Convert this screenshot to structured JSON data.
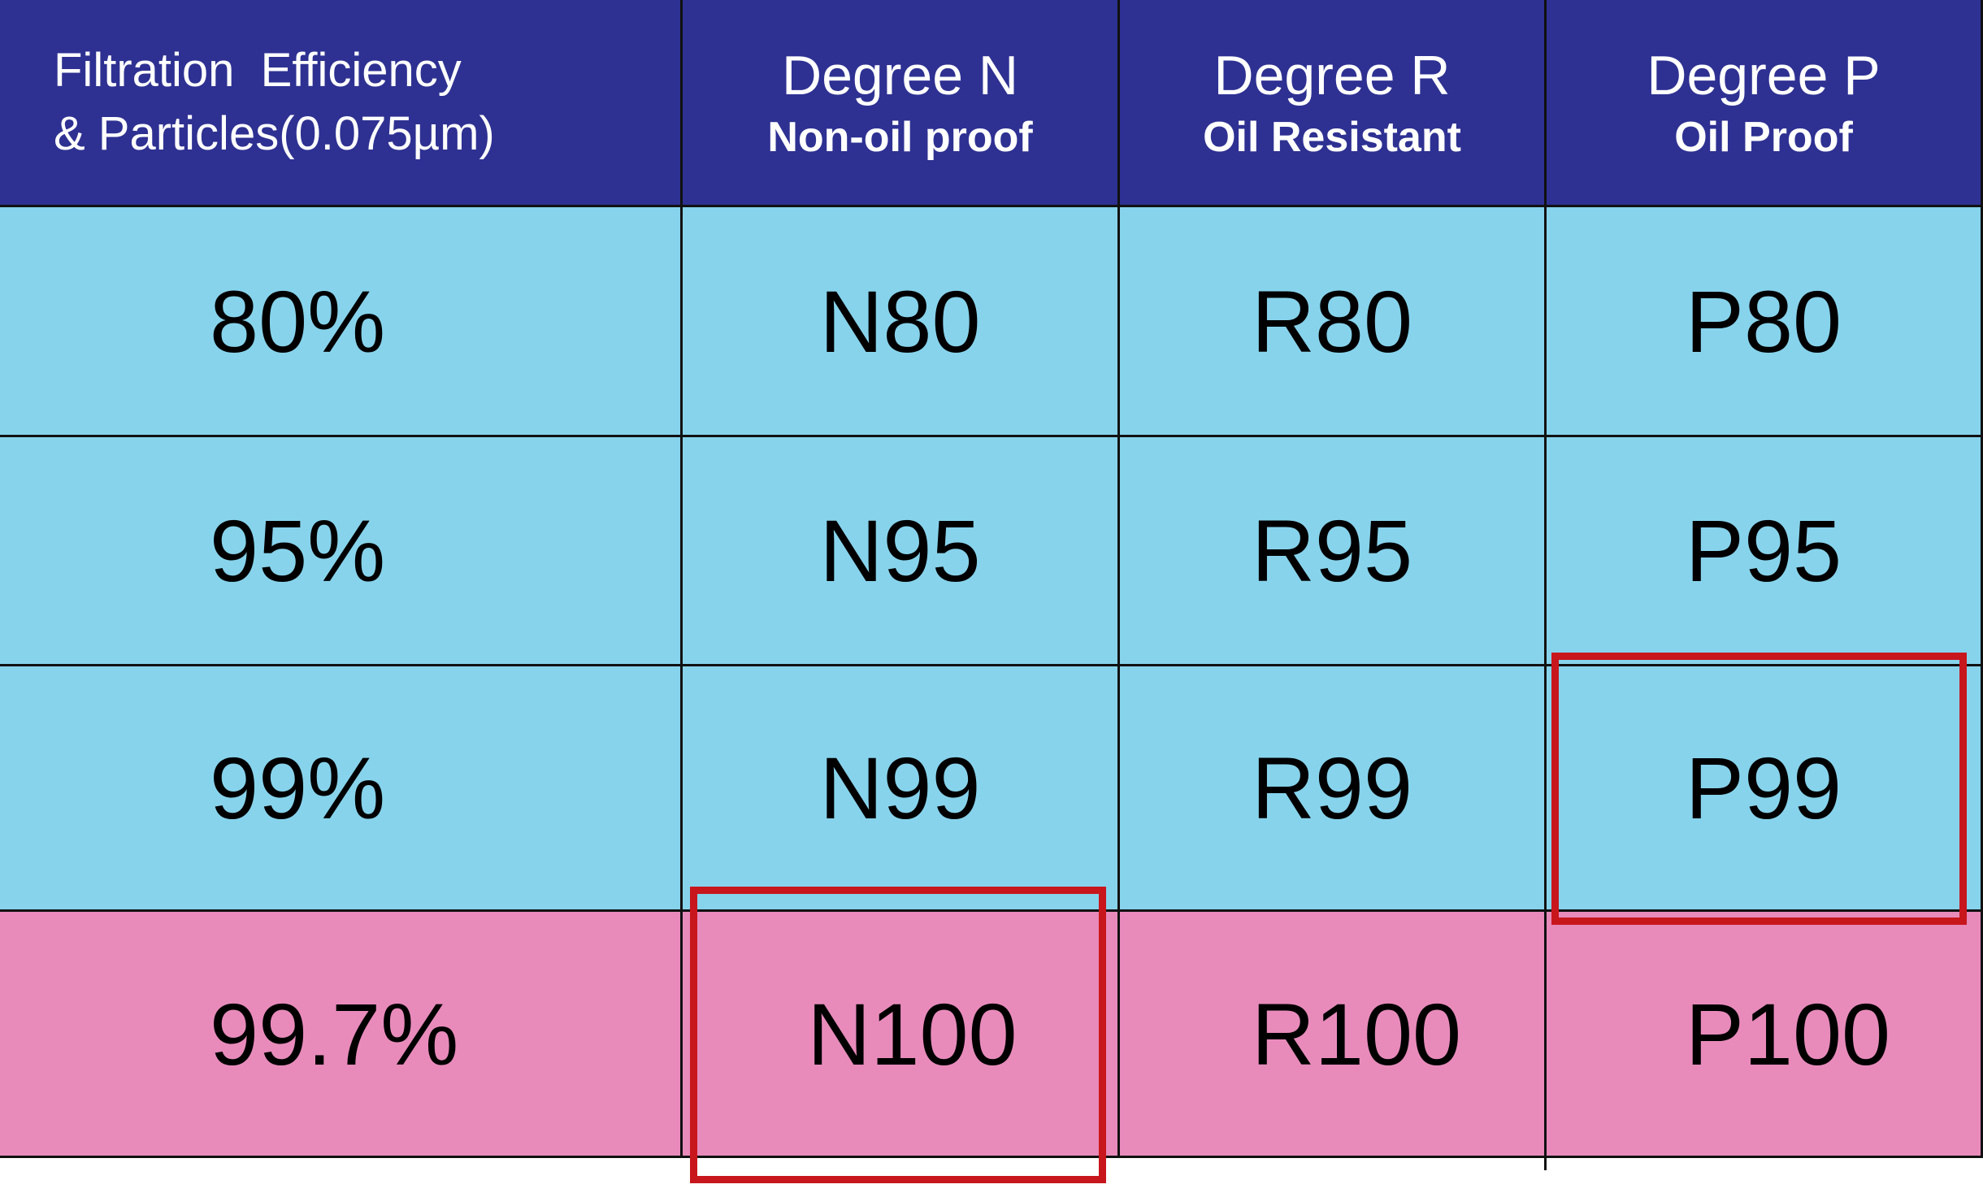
{
  "header": {
    "first_col": {
      "line1": "Filtration  Efficiency",
      "line2": "& Particles(0.075µm)"
    },
    "columns": [
      {
        "title": "Degree N",
        "subtitle": "Non-oil proof"
      },
      {
        "title": "Degree R",
        "subtitle": "Oil Resistant"
      },
      {
        "title": "Degree P",
        "subtitle": "Oil Proof"
      }
    ]
  },
  "rows": [
    {
      "efficiency": "80%",
      "n": "N80",
      "r": "R80",
      "p": "P80",
      "color": "#87d3ec"
    },
    {
      "efficiency": "95%",
      "n": "N95",
      "r": "R95",
      "p": "P95",
      "color": "#87d3ec"
    },
    {
      "efficiency": "99%",
      "n": "N99",
      "r": "R99",
      "p": "P99",
      "color": "#87d3ec"
    },
    {
      "efficiency": "99.7%",
      "n": "N100",
      "r": "R100",
      "p": "P100",
      "color": "#e88bbb"
    }
  ],
  "colors": {
    "header_bg": "#2e3192",
    "row_blue": "#87d3ec",
    "row_pink": "#e88bbb",
    "highlight_border": "#c8161d"
  },
  "highlighted_cells": [
    "P99",
    "N100"
  ]
}
